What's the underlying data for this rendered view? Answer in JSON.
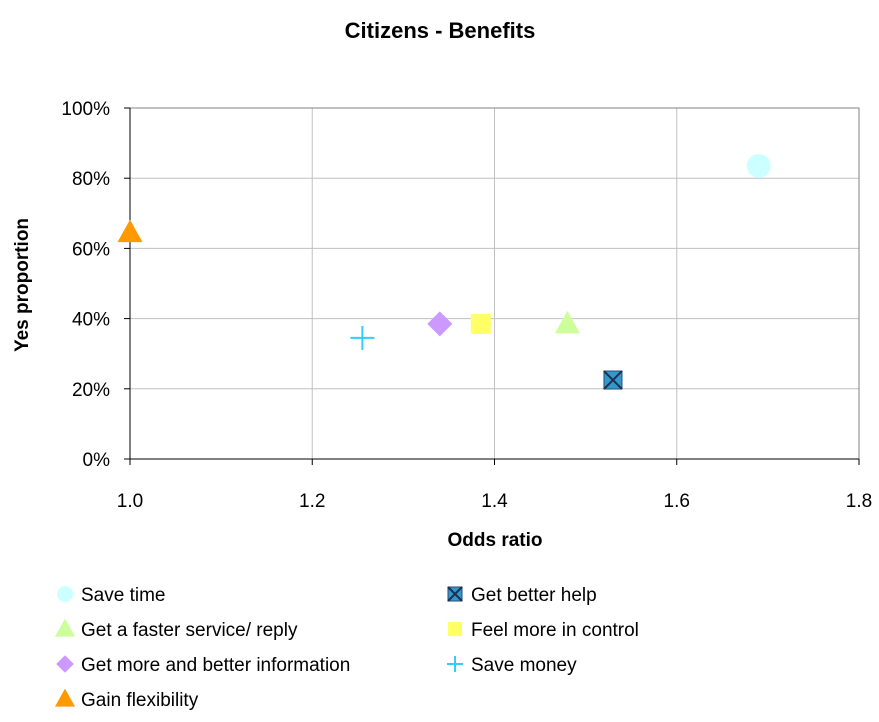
{
  "chart_data": {
    "type": "scatter",
    "title": "Citizens - Benefits",
    "xlabel": "Odds ratio",
    "ylabel": "Yes proportion",
    "xlim": [
      1.0,
      1.8
    ],
    "ylim": [
      0,
      1
    ],
    "x_ticks": [
      1.0,
      1.2,
      1.4,
      1.6,
      1.8
    ],
    "x_tick_labels": [
      "1.0",
      "1.2",
      "1.4",
      "1.6",
      "1.8"
    ],
    "y_ticks": [
      0,
      0.2,
      0.4,
      0.6,
      0.8,
      1.0
    ],
    "y_tick_labels": [
      "0%",
      "20%",
      "40%",
      "60%",
      "80%",
      "100%"
    ],
    "grid": true,
    "legend_position": "bottom",
    "series": [
      {
        "name": "Save time",
        "marker": "circle",
        "color": "#ccffff",
        "x": 1.69,
        "y": 0.835
      },
      {
        "name": "Get better help",
        "marker": "x-square",
        "color": "#3399cc",
        "x": 1.53,
        "y": 0.225
      },
      {
        "name": "Get a faster service/ reply",
        "marker": "triangle",
        "color": "#ccff99",
        "x": 1.48,
        "y": 0.385
      },
      {
        "name": "Feel more in control",
        "marker": "square",
        "color": "#ffff66",
        "x": 1.385,
        "y": 0.385
      },
      {
        "name": "Get more and better information",
        "marker": "diamond",
        "color": "#cc99ff",
        "x": 1.34,
        "y": 0.385
      },
      {
        "name": "Save money",
        "marker": "plus",
        "color": "#33ccff",
        "x": 1.255,
        "y": 0.345
      },
      {
        "name": "Gain flexibility",
        "marker": "triangle",
        "color": "#ff9900",
        "x": 1.0,
        "y": 0.645
      }
    ]
  }
}
